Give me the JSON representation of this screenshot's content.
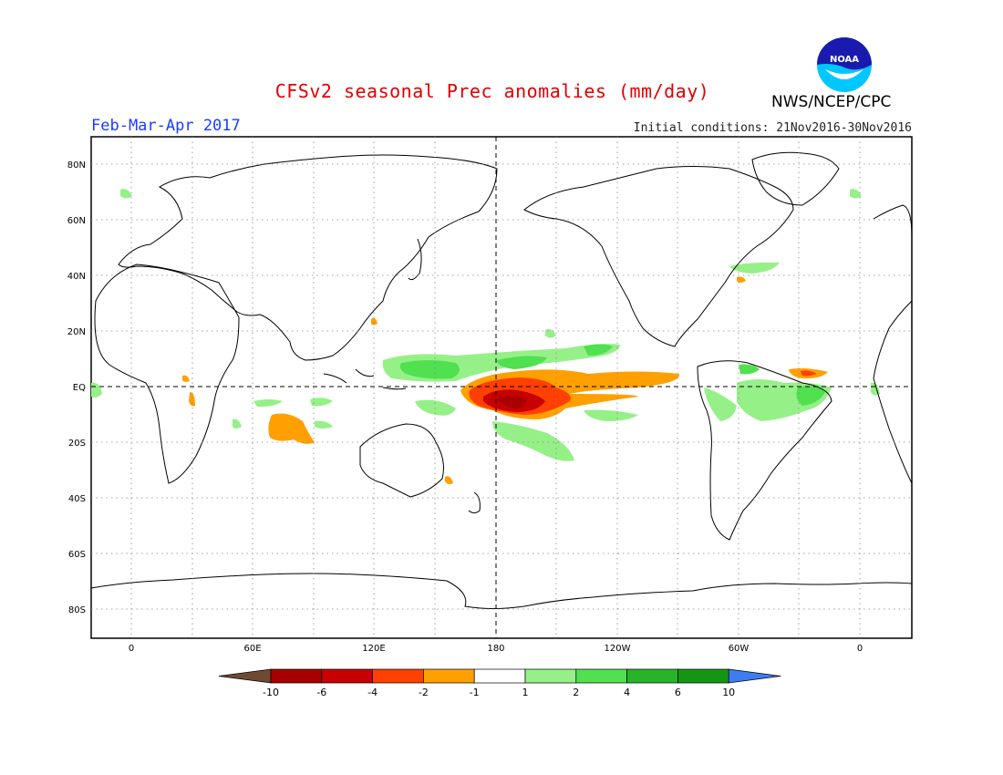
{
  "header": {
    "title": "CFSv2 seasonal Prec anomalies (mm/day)",
    "agency": "NWS/NCEP/CPC",
    "period": "Feb-Mar-Apr 2017",
    "initial_conditions": "Initial conditions: 21Nov2016-30Nov2016",
    "logo_text": "NOAA"
  },
  "map": {
    "projection": "equirectangular, centered on 180",
    "lat_labels": [
      "80N",
      "60N",
      "40N",
      "20N",
      "EQ",
      "20S",
      "40S",
      "60S",
      "80S"
    ],
    "lon_labels": [
      "0",
      "60E",
      "120E",
      "180",
      "120W",
      "60W",
      "0"
    ],
    "grid": "dotted, every 20° lat / 30° lon"
  },
  "colorbar": {
    "labels": [
      "-10",
      "-6",
      "-4",
      "-2",
      "-1",
      "1",
      "2",
      "4",
      "6",
      "10"
    ],
    "colors": [
      "#6e4a33",
      "#a80000",
      "#c80000",
      "#ff4000",
      "#ffa000",
      "#ffffff",
      "#96f088",
      "#50e050",
      "#28b428",
      "#149614",
      "#3e7cf0"
    ]
  },
  "chart_data": {
    "type": "heatmap",
    "title": "CFSv2 seasonal Prec anomalies (mm/day)",
    "units": "mm/day",
    "levels": [
      -10,
      -6,
      -4,
      -2,
      -1,
      1,
      2,
      4,
      6,
      10
    ],
    "anomaly_regions": [
      {
        "region": "Central equatorial Pacific (dateline)",
        "approx_lon": "165E-150W",
        "approx_lat": "0-10S",
        "value_range": "-6 to -4",
        "category": "dry"
      },
      {
        "region": "Equatorial Pacific extension to 120W",
        "approx_lon": "150W-100W",
        "approx_lat": "5N-5S",
        "value_range": "-2 to -1",
        "category": "dry"
      },
      {
        "region": "Western Pacific north of equator",
        "approx_lon": "130E-160W",
        "approx_lat": "5N-15N",
        "value_range": "1 to 4",
        "category": "wet"
      },
      {
        "region": "South Pacific Convergence Zone",
        "approx_lon": "170E-150W",
        "approx_lat": "10S-30S",
        "value_range": "1 to 2",
        "category": "wet"
      },
      {
        "region": "Eastern Indian Ocean",
        "approx_lon": "85E-100E",
        "approx_lat": "10S-20S",
        "value_range": "-2 to -1",
        "category": "dry"
      },
      {
        "region": "Northeast Brazil / equatorial Atlantic",
        "approx_lon": "60W-20W",
        "approx_lat": "0-10S",
        "value_range": "1 to 4",
        "category": "wet"
      },
      {
        "region": "Tropical Atlantic north of equator",
        "approx_lon": "35W-15W",
        "approx_lat": "5N",
        "value_range": "-4 to -2",
        "category": "dry"
      }
    ]
  }
}
